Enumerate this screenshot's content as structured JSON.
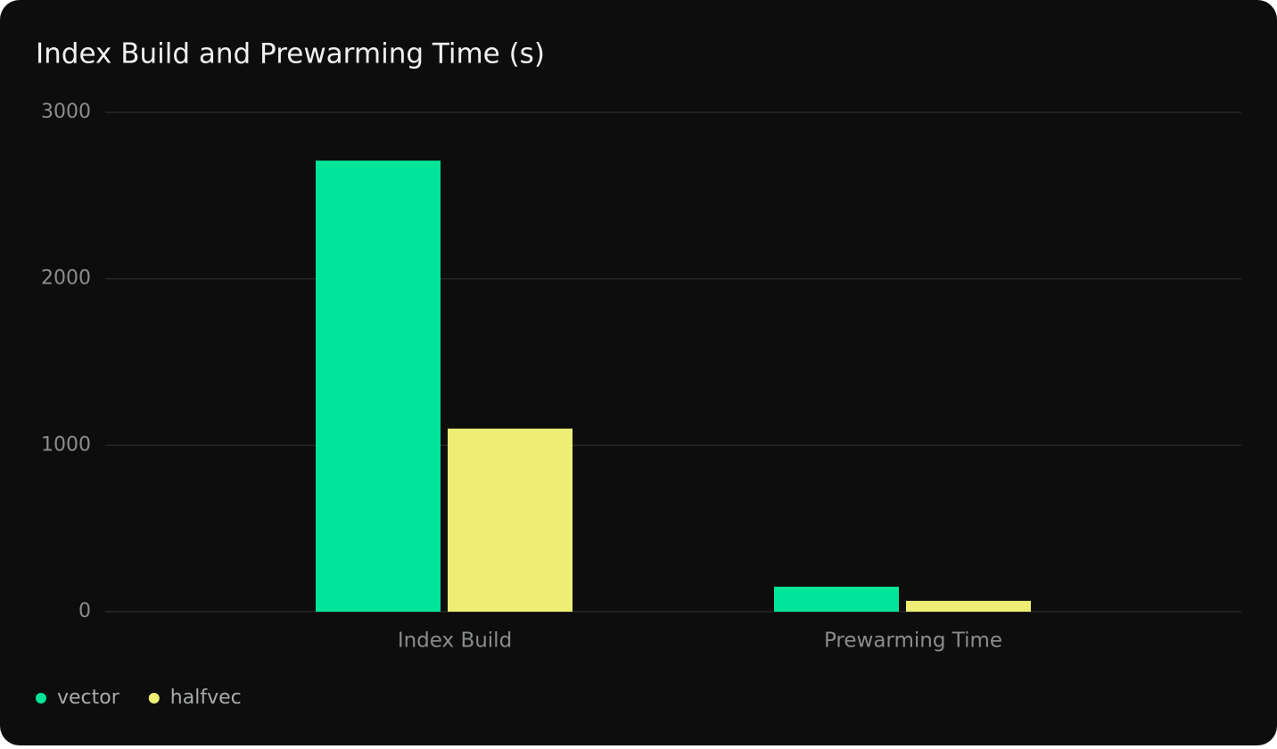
{
  "chart_data": {
    "type": "bar",
    "title": "Index Build and Prewarming Time (s)",
    "categories": [
      "Index Build",
      "Prewarming Time"
    ],
    "series": [
      {
        "name": "vector",
        "color": "#00e599",
        "values": [
          2710,
          150
        ]
      },
      {
        "name": "halfvec",
        "color": "#eeee75",
        "values": [
          1100,
          65
        ]
      }
    ],
    "ylim": [
      0,
      3000
    ],
    "yticks": [
      0,
      1000,
      2000,
      3000
    ],
    "grid": true,
    "legend": "bottom-left"
  }
}
